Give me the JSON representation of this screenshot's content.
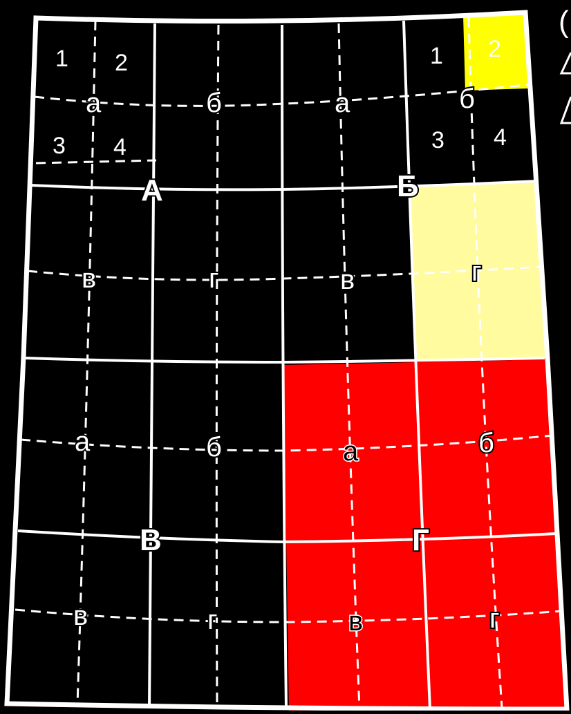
{
  "colors": {
    "background": "#000000",
    "lines": "#ffffff",
    "highlight_yellow": "#ffff00",
    "highlight_light_yellow": "#fffb9e",
    "highlight_red": "#ff0000"
  },
  "quadrants": {
    "A": "А",
    "B": "Б",
    "V": "В",
    "G": "Г"
  },
  "subcells": {
    "a": "а",
    "b": "б",
    "v": "в",
    "g": "г"
  },
  "numbers": {
    "n1": "1",
    "n2": "2",
    "n3": "3",
    "n4": "4"
  }
}
